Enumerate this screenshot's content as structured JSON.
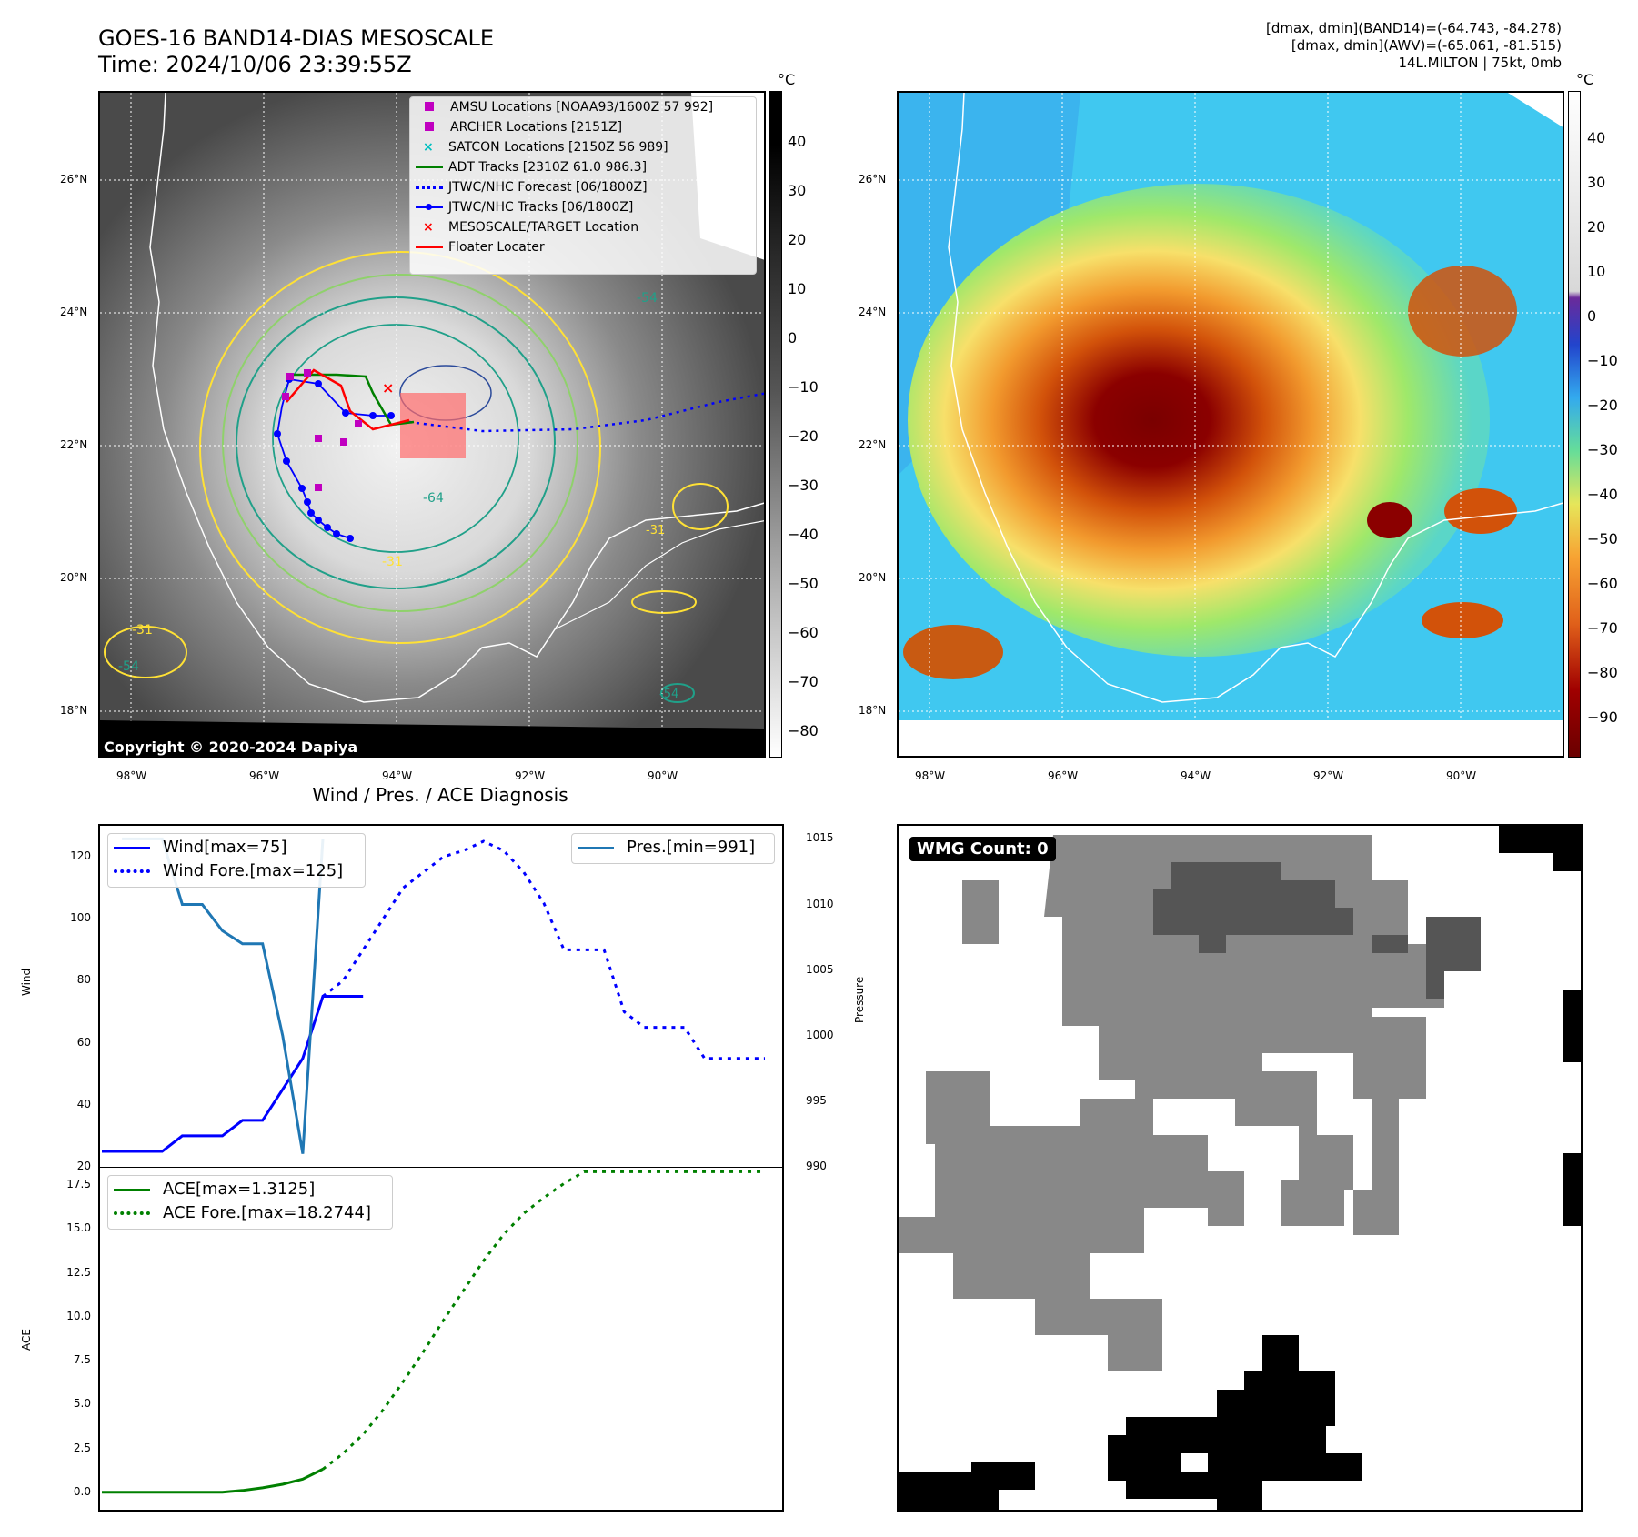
{
  "header": {
    "title_line1": "GOES-16 BAND14-DIAS MESOSCALE",
    "title_line2": "Time: 2024/10/06 23:39:55Z",
    "stats_line1": "[dmax, dmin](BAND14)=(-64.743, -84.278)",
    "stats_line2": "[dmax, dmin](AWV)=(-65.061, -81.515)",
    "stats_line3": "14L.MILTON | 75kt, 0mb"
  },
  "map": {
    "lat_labels": [
      "26°N",
      "24°N",
      "22°N",
      "20°N",
      "18°N"
    ],
    "lon_labels": [
      "98°W",
      "96°W",
      "94°W",
      "92°W",
      "90°W"
    ],
    "copyright": "Copyright © 2020-2024 Dapiya",
    "contour_labels": [
      "-54",
      "-64",
      "-31",
      "-31",
      "-54",
      "-31",
      "-54"
    ],
    "colors": {
      "land_outline": "#ffffff",
      "contour_yellow": "#ffe135",
      "contour_green": "#8fd16b",
      "contour_teal": "#20a089",
      "contour_navy": "#2b4a9a"
    }
  },
  "legend": [
    {
      "label": "AMSU Locations [NOAA93/1600Z 57 992]",
      "marker": "square",
      "color": "#c000c0"
    },
    {
      "label": "ARCHER Locations [2151Z]",
      "marker": "square",
      "color": "#c000c0"
    },
    {
      "label": "SATCON Locations [2150Z 56 989]",
      "marker": "x",
      "color": "#00c0c0"
    },
    {
      "label": "ADT Tracks [2310Z 61.0 986.3]",
      "marker": "line",
      "color": "#008000"
    },
    {
      "label": "JTWC/NHC Forecast [06/1800Z]",
      "marker": "dotted",
      "color": "#0000ff"
    },
    {
      "label": "JTWC/NHC Tracks [06/1800Z]",
      "marker": "line-dot",
      "color": "#0000ff"
    },
    {
      "label": "MESOSCALE/TARGET Location",
      "marker": "x",
      "color": "#ff0000"
    },
    {
      "label": "Floater Locater",
      "marker": "line",
      "color": "#ff0000"
    }
  ],
  "colorbar_gray": {
    "unit": "°C",
    "ticks": [
      "40",
      "30",
      "20",
      "10",
      "0",
      "−10",
      "−20",
      "−30",
      "−40",
      "−50",
      "−60",
      "−70",
      "−80"
    ]
  },
  "colorbar_color": {
    "unit": "°C",
    "ticks": [
      "40",
      "30",
      "20",
      "10",
      "0",
      "−10",
      "−20",
      "−30",
      "−40",
      "−50",
      "−60",
      "−70",
      "−80",
      "−90"
    ]
  },
  "wmg": {
    "badge": "WMG Count: 0"
  },
  "diag_title": "Wind / Pres. / ACE Diagnosis",
  "chart_data": [
    {
      "type": "line",
      "title": "Wind / Pres. / ACE Diagnosis",
      "ylabel": "Wind",
      "y2label": "Pressure",
      "ylim": [
        20,
        130
      ],
      "y2lim": [
        990,
        1016
      ],
      "yticks": [
        "120",
        "100",
        "80",
        "60",
        "40",
        "20"
      ],
      "y2ticks": [
        "1015",
        "1010",
        "1005",
        "1000",
        "995",
        "990"
      ],
      "grid": false,
      "legend_position": "upper-left",
      "legend2_position": "upper-right",
      "series": [
        {
          "name": "Wind[max=75]",
          "axis": "left",
          "style": "solid",
          "color": "#0000ff",
          "x": [
            0,
            1,
            2,
            3,
            4,
            5,
            6,
            7,
            8,
            9,
            10,
            11,
            12,
            13
          ],
          "values": [
            25,
            25,
            25,
            25,
            30,
            30,
            30,
            35,
            35,
            45,
            55,
            75,
            75,
            75
          ]
        },
        {
          "name": "Wind Fore.[max=125]",
          "axis": "left",
          "style": "dotted",
          "color": "#0000ff",
          "x": [
            11,
            12,
            13,
            14,
            15,
            16,
            17,
            18,
            19,
            20,
            21,
            22,
            23,
            24,
            25,
            26,
            27,
            28,
            29,
            30,
            31,
            32,
            33
          ],
          "values": [
            75,
            80,
            90,
            100,
            110,
            115,
            120,
            122,
            125,
            122,
            115,
            105,
            90,
            90,
            90,
            70,
            65,
            65,
            65,
            55,
            55,
            55,
            55
          ]
        },
        {
          "name": "Pres.[min=991]",
          "axis": "right",
          "style": "solid",
          "color": "#1f77b4",
          "x": [
            1,
            2,
            3,
            4,
            5,
            6,
            7,
            8,
            9,
            10,
            11
          ],
          "values": [
            1015,
            1015,
            1015,
            1010,
            1010,
            1008,
            1007,
            1007,
            1000,
            991,
            1015
          ]
        }
      ]
    },
    {
      "type": "line",
      "ylabel": "ACE",
      "ylim": [
        -1,
        18.5
      ],
      "yticks": [
        "17.5",
        "15.0",
        "12.5",
        "10.0",
        "7.5",
        "5.0",
        "2.5",
        "0.0"
      ],
      "grid": false,
      "legend_position": "upper-left",
      "series": [
        {
          "name": "ACE[max=1.3125]",
          "style": "solid",
          "color": "#008000",
          "x": [
            0,
            1,
            2,
            3,
            4,
            5,
            6,
            7,
            8,
            9,
            10,
            11
          ],
          "values": [
            0,
            0,
            0,
            0,
            0,
            0,
            0,
            0.1,
            0.25,
            0.45,
            0.75,
            1.3125
          ]
        },
        {
          "name": "ACE Fore.[max=18.2744]",
          "style": "dotted",
          "color": "#008000",
          "x": [
            11,
            12,
            13,
            14,
            15,
            16,
            17,
            18,
            19,
            20,
            21,
            22,
            23,
            24,
            25,
            26,
            27,
            28,
            29,
            30,
            31,
            32,
            33
          ],
          "values": [
            1.3125,
            2.2,
            3.3,
            4.7,
            6.3,
            8.0,
            9.8,
            11.5,
            13.2,
            14.7,
            15.9,
            16.8,
            17.6,
            18.27,
            18.27,
            18.27,
            18.27,
            18.27,
            18.27,
            18.27,
            18.27,
            18.27,
            18.27
          ]
        }
      ]
    }
  ]
}
